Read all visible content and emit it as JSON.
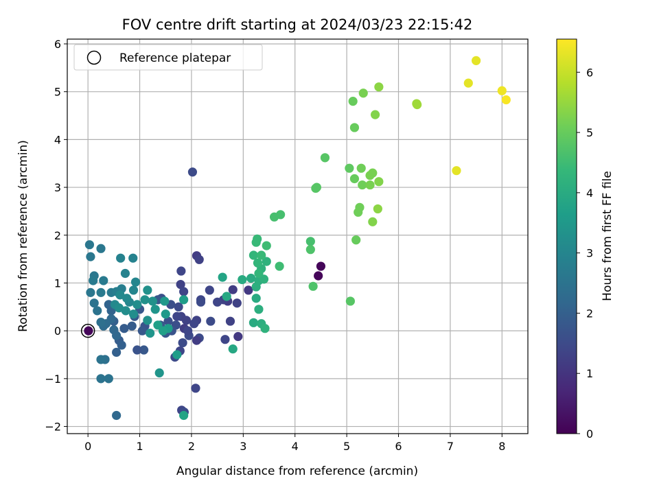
{
  "chart_data": {
    "type": "scatter",
    "title": "FOV centre drift starting at 2024/03/23 22:15:42",
    "xlabel": "Angular distance from reference (arcmin)",
    "ylabel": "Rotation from reference (arcmin)",
    "xlim": [
      -0.4,
      8.5
    ],
    "ylim": [
      -2.15,
      6.1
    ],
    "xticks": [
      0,
      1,
      2,
      3,
      4,
      5,
      6,
      7,
      8
    ],
    "yticks": [
      -2,
      -1,
      0,
      1,
      2,
      3,
      4,
      5,
      6
    ],
    "grid": true,
    "legend": {
      "placement": "top-left",
      "entries": [
        "Reference platepar"
      ]
    },
    "reference": {
      "x": 0,
      "y": 0,
      "label": "Reference platepar"
    },
    "colorbar": {
      "label": "Hours from first FF file",
      "min": 0,
      "max": 6.55,
      "ticks": [
        0,
        1,
        2,
        3,
        4,
        5,
        6
      ],
      "colormap": "viridis"
    },
    "points": [
      [
        0.01,
        0.0,
        0.1
      ],
      [
        4.5,
        1.35,
        0.1
      ],
      [
        4.45,
        1.15,
        0.1
      ],
      [
        2.02,
        3.32,
        1.5
      ],
      [
        2.1,
        1.57,
        1.2
      ],
      [
        2.15,
        1.49,
        1.3
      ],
      [
        1.8,
        1.25,
        1.4
      ],
      [
        1.79,
        0.97,
        1.3
      ],
      [
        1.85,
        0.82,
        1.4
      ],
      [
        2.9,
        -0.12,
        1.1
      ],
      [
        2.8,
        0.86,
        1.2
      ],
      [
        2.88,
        0.58,
        1.3
      ],
      [
        3.1,
        0.85,
        1.1
      ],
      [
        2.7,
        0.62,
        1.2
      ],
      [
        2.62,
        0.65,
        1.3
      ],
      [
        2.35,
        0.85,
        1.4
      ],
      [
        2.5,
        0.6,
        1.4
      ],
      [
        2.37,
        0.2,
        1.5
      ],
      [
        2.75,
        0.2,
        1.3
      ],
      [
        2.65,
        -0.18,
        1.4
      ],
      [
        2.18,
        0.65,
        1.4
      ],
      [
        2.18,
        0.6,
        1.5
      ],
      [
        2.1,
        0.22,
        1.3
      ],
      [
        2.05,
        0.15,
        1.4
      ],
      [
        2.15,
        -0.15,
        1.5
      ],
      [
        2.1,
        -0.2,
        1.2
      ],
      [
        1.9,
        0.22,
        1.3
      ],
      [
        1.95,
        -0.1,
        1.5
      ],
      [
        1.86,
        0.05,
        1.2
      ],
      [
        1.93,
        0.0,
        1.4
      ],
      [
        1.8,
        0.3,
        1.3
      ],
      [
        1.72,
        0.3,
        1.4
      ],
      [
        1.83,
        -0.25,
        1.5
      ],
      [
        1.78,
        -0.42,
        1.4
      ],
      [
        1.75,
        0.5,
        1.5
      ],
      [
        1.7,
        0.12,
        1.6
      ],
      [
        1.68,
        -0.55,
        1.5
      ],
      [
        2.08,
        -1.2,
        1.4
      ],
      [
        1.81,
        -1.66,
        1.4
      ],
      [
        1.86,
        -1.7,
        1.5
      ],
      [
        1.6,
        0.55,
        1.6
      ],
      [
        1.55,
        0.2,
        1.6
      ],
      [
        1.62,
        0.0,
        1.7
      ],
      [
        1.42,
        0.68,
        1.6
      ],
      [
        1.35,
        0.65,
        1.8
      ],
      [
        1.4,
        0.12,
        1.8
      ],
      [
        1.5,
        -0.05,
        1.8
      ],
      [
        1.1,
        0.1,
        1.7
      ],
      [
        1.05,
        0.0,
        1.8
      ],
      [
        1.08,
        -0.4,
        1.8
      ],
      [
        0.95,
        -0.4,
        1.7
      ],
      [
        1.0,
        0.45,
        1.8
      ],
      [
        0.9,
        0.3,
        1.8
      ],
      [
        0.85,
        0.1,
        1.9
      ],
      [
        0.7,
        0.05,
        1.9
      ],
      [
        0.6,
        -0.2,
        1.9
      ],
      [
        0.65,
        -0.3,
        2.0
      ],
      [
        0.55,
        -0.45,
        2.0
      ],
      [
        0.55,
        -1.77,
        2.2
      ],
      [
        0.5,
        0.2,
        2.0
      ],
      [
        0.45,
        0.42,
        2.1
      ],
      [
        0.4,
        0.55,
        2.1
      ],
      [
        0.45,
        0.25,
        2.2
      ],
      [
        0.5,
        0.02,
        2.2
      ],
      [
        0.55,
        -0.1,
        2.2
      ],
      [
        0.35,
        0.15,
        2.3
      ],
      [
        0.3,
        0.1,
        2.3
      ],
      [
        0.25,
        0.18,
        2.4
      ],
      [
        0.33,
        -0.6,
        2.4
      ],
      [
        0.25,
        -0.6,
        2.5
      ],
      [
        0.4,
        -1.0,
        2.5
      ],
      [
        0.25,
        -1.0,
        2.5
      ],
      [
        0.18,
        0.42,
        2.5
      ],
      [
        0.12,
        0.58,
        2.5
      ],
      [
        0.05,
        0.8,
        2.6
      ],
      [
        0.05,
        1.55,
        2.6
      ],
      [
        0.03,
        1.8,
        2.6
      ],
      [
        0.25,
        1.72,
        2.6
      ],
      [
        0.12,
        1.15,
        2.6
      ],
      [
        0.1,
        1.05,
        2.7
      ],
      [
        0.3,
        1.05,
        2.7
      ],
      [
        0.25,
        0.8,
        2.7
      ],
      [
        0.45,
        0.8,
        2.7
      ],
      [
        0.55,
        0.82,
        2.8
      ],
      [
        0.65,
        0.88,
        2.8
      ],
      [
        0.63,
        1.52,
        2.9
      ],
      [
        0.87,
        1.52,
        2.9
      ],
      [
        0.72,
        1.2,
        2.9
      ],
      [
        0.92,
        1.02,
        3.0
      ],
      [
        0.88,
        0.85,
        3.0
      ],
      [
        0.8,
        0.6,
        3.0
      ],
      [
        0.75,
        0.68,
        3.1
      ],
      [
        0.62,
        0.75,
        3.1
      ],
      [
        0.52,
        0.55,
        3.1
      ],
      [
        0.6,
        0.48,
        3.2
      ],
      [
        0.73,
        0.42,
        3.2
      ],
      [
        0.88,
        0.35,
        3.2
      ],
      [
        0.95,
        0.55,
        3.2
      ],
      [
        1.1,
        0.65,
        3.3
      ],
      [
        1.15,
        0.85,
        3.3
      ],
      [
        1.25,
        0.62,
        3.3
      ],
      [
        1.15,
        0.22,
        3.3
      ],
      [
        1.2,
        -0.05,
        3.4
      ],
      [
        1.3,
        0.45,
        3.4
      ],
      [
        1.38,
        -0.88,
        3.4
      ],
      [
        1.48,
        0.62,
        3.5
      ],
      [
        1.5,
        0.35,
        3.5
      ],
      [
        1.55,
        0.05,
        3.6
      ],
      [
        1.72,
        -0.5,
        3.6
      ],
      [
        1.85,
        0.65,
        3.6
      ],
      [
        1.35,
        0.12,
        3.7
      ],
      [
        1.45,
        0.0,
        3.7
      ],
      [
        1.85,
        -1.77,
        3.8
      ],
      [
        2.6,
        1.12,
        3.8
      ],
      [
        2.68,
        0.72,
        3.9
      ],
      [
        2.8,
        -0.38,
        3.9
      ],
      [
        2.98,
        1.07,
        4.0
      ],
      [
        3.15,
        1.1,
        4.0
      ],
      [
        3.25,
        0.68,
        4.0
      ],
      [
        3.2,
        0.17,
        4.0
      ],
      [
        3.3,
        0.45,
        4.1
      ],
      [
        3.35,
        0.15,
        4.1
      ],
      [
        3.25,
        0.92,
        4.1
      ],
      [
        3.3,
        1.05,
        4.1
      ],
      [
        3.42,
        0.05,
        4.2
      ],
      [
        3.45,
        1.45,
        4.2
      ],
      [
        3.4,
        1.08,
        4.2
      ],
      [
        3.35,
        1.3,
        4.2
      ],
      [
        3.3,
        1.2,
        4.3
      ],
      [
        3.2,
        1.58,
        4.3
      ],
      [
        3.28,
        1.42,
        4.3
      ],
      [
        3.25,
        1.85,
        4.4
      ],
      [
        3.27,
        1.92,
        4.4
      ],
      [
        3.35,
        1.58,
        4.4
      ],
      [
        3.45,
        1.78,
        4.5
      ],
      [
        3.7,
        1.35,
        4.5
      ],
      [
        3.6,
        2.38,
        4.6
      ],
      [
        3.72,
        2.43,
        4.6
      ],
      [
        4.3,
        1.87,
        4.6
      ],
      [
        4.3,
        1.7,
        4.7
      ],
      [
        4.35,
        0.93,
        4.7
      ],
      [
        4.4,
        2.98,
        4.8
      ],
      [
        4.42,
        3.0,
        4.8
      ],
      [
        4.58,
        3.62,
        4.8
      ],
      [
        5.07,
        0.62,
        4.8
      ],
      [
        5.05,
        3.4,
        4.9
      ],
      [
        5.12,
        4.8,
        5.0
      ],
      [
        5.15,
        4.25,
        5.0
      ],
      [
        5.15,
        3.18,
        5.0
      ],
      [
        5.18,
        1.9,
        5.0
      ],
      [
        5.22,
        2.48,
        5.1
      ],
      [
        5.25,
        2.58,
        5.1
      ],
      [
        5.28,
        3.4,
        5.1
      ],
      [
        5.3,
        3.05,
        5.1
      ],
      [
        5.32,
        4.97,
        5.2
      ],
      [
        5.45,
        3.25,
        5.2
      ],
      [
        5.5,
        3.3,
        5.2
      ],
      [
        5.45,
        3.05,
        5.2
      ],
      [
        5.5,
        2.28,
        5.3
      ],
      [
        5.55,
        4.52,
        5.3
      ],
      [
        5.62,
        3.12,
        5.3
      ],
      [
        5.6,
        2.55,
        5.4
      ],
      [
        5.62,
        5.1,
        5.4
      ],
      [
        6.35,
        4.75,
        5.6
      ],
      [
        6.36,
        4.73,
        5.6
      ],
      [
        7.12,
        3.35,
        6.3
      ],
      [
        7.35,
        5.18,
        6.3
      ],
      [
        7.5,
        5.65,
        6.3
      ],
      [
        8.0,
        5.02,
        6.4
      ],
      [
        8.08,
        4.83,
        6.5
      ]
    ]
  }
}
